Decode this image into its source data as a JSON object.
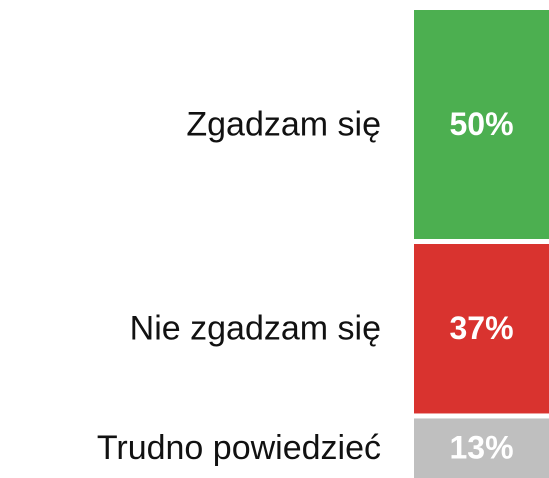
{
  "chart_data": {
    "type": "stacked-bar",
    "categories": [
      "Zgadzam się",
      "Nie zgadzam się",
      "Trudno powiedzieć"
    ],
    "values": [
      50,
      37,
      13
    ],
    "value_labels": [
      "50%",
      "37%",
      "13%"
    ],
    "colors": [
      "#4caf50",
      "#d9332f",
      "#bfbfbf"
    ]
  }
}
